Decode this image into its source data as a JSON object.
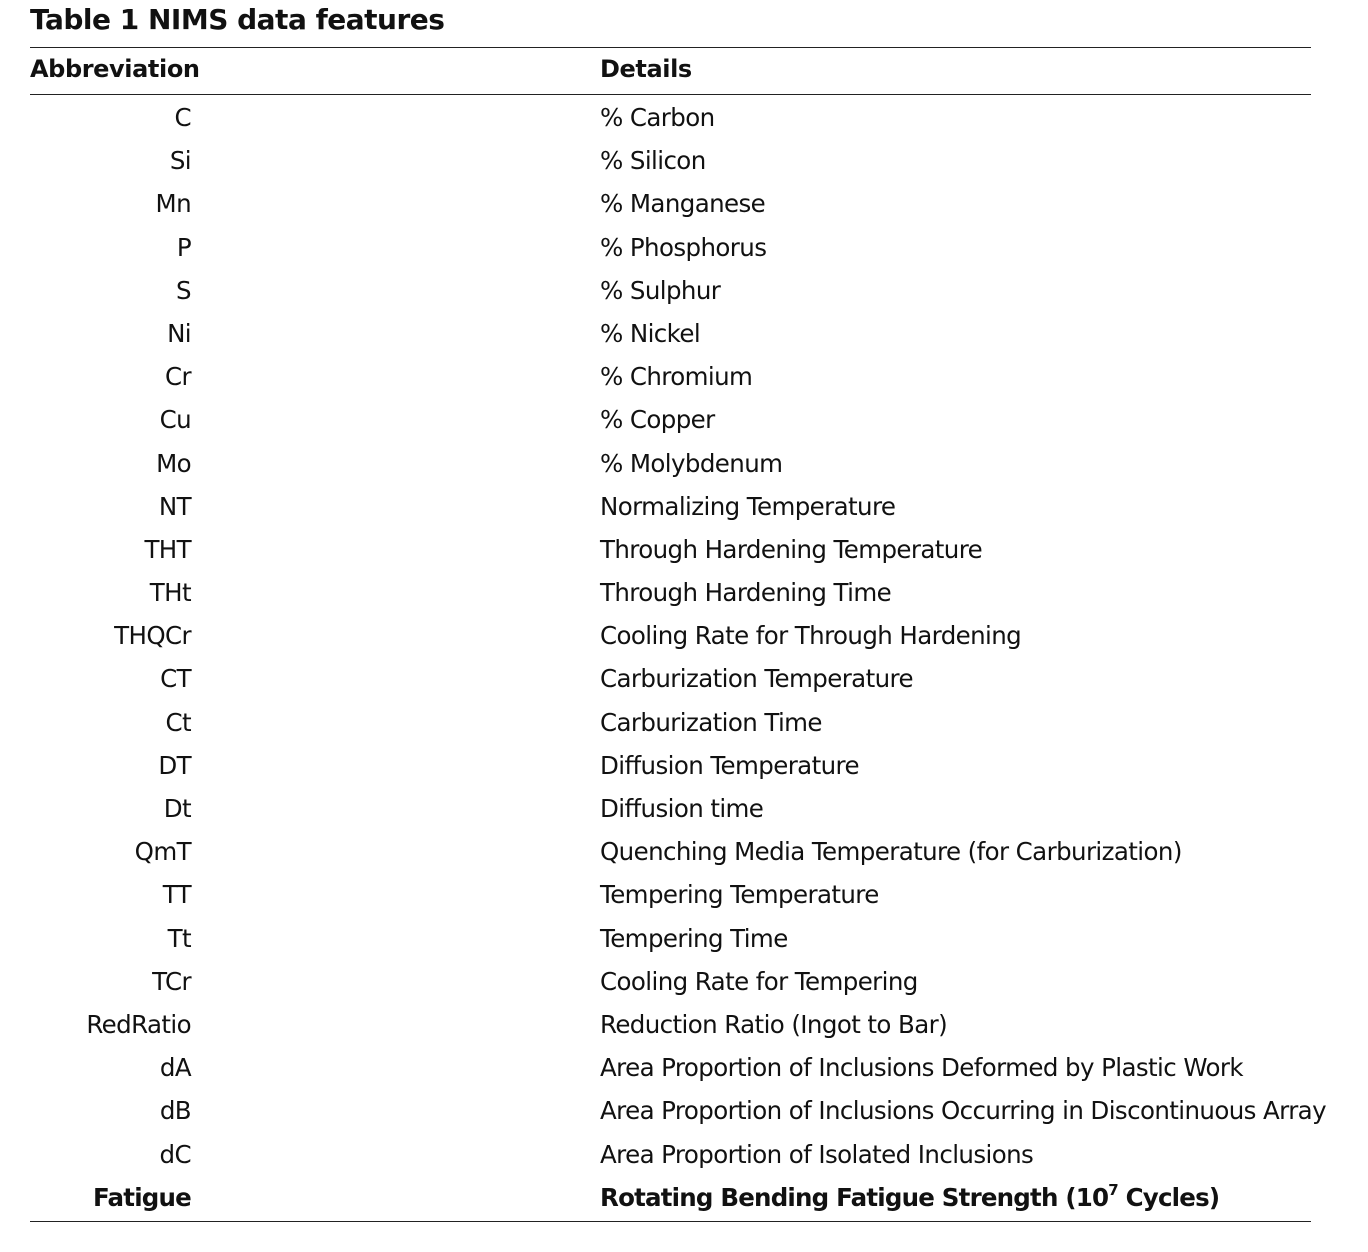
{
  "table": {
    "caption": "Table 1 NIMS data features",
    "headers": {
      "abbreviation": "Abbreviation",
      "details": "Details"
    },
    "rows": [
      {
        "abbr": "C",
        "details": "% Carbon"
      },
      {
        "abbr": "Si",
        "details": "% Silicon"
      },
      {
        "abbr": "Mn",
        "details": "% Manganese"
      },
      {
        "abbr": "P",
        "details": "% Phosphorus"
      },
      {
        "abbr": "S",
        "details": "% Sulphur"
      },
      {
        "abbr": "Ni",
        "details": "% Nickel"
      },
      {
        "abbr": "Cr",
        "details": "% Chromium"
      },
      {
        "abbr": "Cu",
        "details": "% Copper"
      },
      {
        "abbr": "Mo",
        "details": "% Molybdenum"
      },
      {
        "abbr": "NT",
        "details": "Normalizing Temperature"
      },
      {
        "abbr": "THT",
        "details": "Through Hardening Temperature"
      },
      {
        "abbr": "THt",
        "details": "Through Hardening Time"
      },
      {
        "abbr": "THQCr",
        "details": "Cooling Rate for Through Hardening"
      },
      {
        "abbr": "CT",
        "details": "Carburization Temperature"
      },
      {
        "abbr": "Ct",
        "details": "Carburization Time"
      },
      {
        "abbr": "DT",
        "details": "Diffusion Temperature"
      },
      {
        "abbr": "Dt",
        "details": "Diffusion time"
      },
      {
        "abbr": "QmT",
        "details": "Quenching Media Temperature (for Carburization)"
      },
      {
        "abbr": "TT",
        "details": "Tempering Temperature"
      },
      {
        "abbr": "Tt",
        "details": "Tempering Time"
      },
      {
        "abbr": "TCr",
        "details": "Cooling Rate for Tempering"
      },
      {
        "abbr": "RedRatio",
        "details": "Reduction Ratio (Ingot to Bar)"
      },
      {
        "abbr": "dA",
        "details": "Area Proportion of Inclusions Deformed by Plastic Work"
      },
      {
        "abbr": "dB",
        "details": "Area Proportion of Inclusions Occurring in Discontinuous Array"
      },
      {
        "abbr": "dC",
        "details": "Area Proportion of Isolated Inclusions"
      }
    ],
    "final_row": {
      "abbr": "Fatigue",
      "details_before": "Rotating Bending Fatigue Strength (10",
      "details_sup": "7",
      "details_after": " Cycles)"
    }
  }
}
